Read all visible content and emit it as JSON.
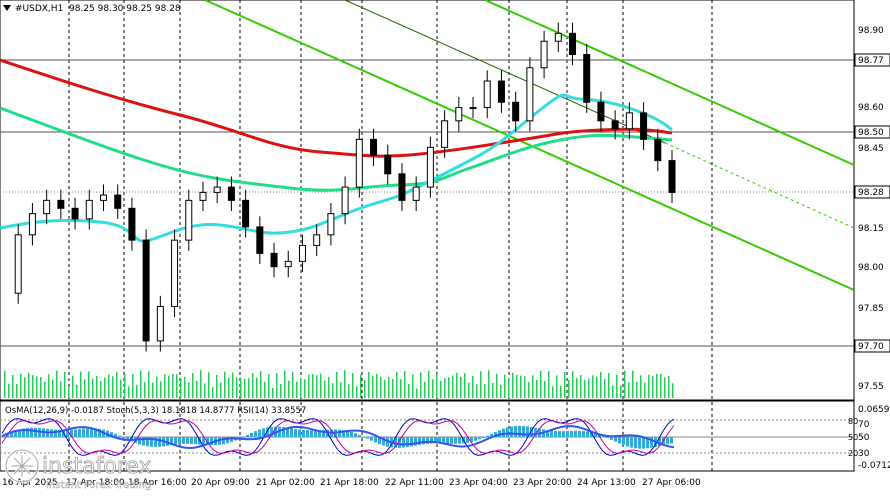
{
  "chart_title": {
    "symbol": "#USDX,H1",
    "ohlc": "98.25 98.30 98.25 98.28",
    "dropdown_icon": "triangle-down"
  },
  "price_axis": {
    "ticks": [
      "98.90",
      "98.60",
      "98.45",
      "98.15",
      "98.00",
      "97.85",
      "97.55"
    ],
    "highlighted": [
      {
        "label": "98.77",
        "kind": "level"
      },
      {
        "label": "98.50",
        "kind": "level"
      },
      {
        "label": "98.28",
        "kind": "current"
      },
      {
        "label": "97.70",
        "kind": "level"
      }
    ]
  },
  "time_axis": {
    "labels": [
      "16 Apr 2025",
      "17 Apr 18:00",
      "18 Apr 16:00",
      "20 Apr 09:00",
      "21 Apr 02:00",
      "21 Apr 18:00",
      "22 Apr 11:00",
      "23 Apr 04:00",
      "23 Apr 20:00",
      "24 Apr 13:00",
      "27 Apr 06:00"
    ]
  },
  "indicator": {
    "header": "OsMA(12,26,9) -0.0187  Stoch(5,3,3) 18.1818 14.8777  RSI(14) 33.8557",
    "scale": [
      "0.0659",
      "70",
      "50",
      "30",
      "-0.0712"
    ],
    "level_labels": [
      "80",
      "50",
      "20"
    ]
  },
  "watermark": {
    "brand": "instaforex",
    "tagline": "Instant Forex Trading"
  },
  "colors": {
    "candles": "#000000",
    "ema_red": "#dd1111",
    "ema_green": "#22dd88",
    "ema_cyan": "#33dddd",
    "channel": "#33cc00",
    "osma": "#33aadd",
    "stoch_main": "#0000cc",
    "stoch_signal": "#cc0099",
    "rsi": "#3355ee"
  },
  "chart_data": {
    "type": "line",
    "title": "#USDX,H1",
    "ylim": [
      97.5,
      98.95
    ],
    "y_ticks": [
      98.9,
      98.6,
      98.45,
      98.15,
      98.0,
      97.85,
      97.55
    ],
    "x_labels": [
      "16 Apr 2025",
      "17 Apr 18:00",
      "18 Apr 16:00",
      "20 Apr 09:00",
      "21 Apr 02:00",
      "21 Apr 18:00",
      "22 Apr 11:00",
      "23 Apr 04:00",
      "23 Apr 20:00",
      "24 Apr 13:00",
      "27 Apr 06:00"
    ],
    "series": [
      {
        "name": "close",
        "values": [
          97.9,
          98.12,
          98.2,
          98.25,
          98.22,
          98.18,
          98.25,
          98.27,
          98.22,
          98.1,
          97.72,
          97.85,
          98.1,
          98.25,
          98.28,
          98.3,
          98.25,
          98.15,
          98.05,
          98.0,
          98.02,
          98.08,
          98.12,
          98.2,
          98.3,
          98.48,
          98.42,
          98.35,
          98.25,
          98.3,
          98.45,
          98.55,
          98.6,
          98.6,
          98.7,
          98.62,
          98.55,
          98.75,
          98.85,
          98.88,
          98.8,
          98.62,
          98.55,
          98.52,
          98.58,
          98.48,
          98.4,
          98.28
        ]
      },
      {
        "name": "EMA red",
        "values": [
          98.77,
          98.72,
          98.67,
          98.63,
          98.58,
          98.55,
          98.51,
          98.48,
          98.45,
          98.42,
          98.41,
          98.41,
          98.41,
          98.42,
          98.43,
          98.45,
          98.48,
          98.5,
          98.5,
          98.5,
          98.5,
          98.49
        ]
      },
      {
        "name": "EMA green",
        "values": [
          98.6,
          98.55,
          98.52,
          98.48,
          98.44,
          98.4,
          98.36,
          98.32,
          98.3,
          98.3,
          98.3,
          98.32,
          98.36,
          98.4,
          98.43,
          98.46,
          98.48,
          98.49,
          98.49,
          98.48
        ]
      },
      {
        "name": "EMA cyan",
        "values": [
          98.15,
          98.17,
          98.16,
          98.1,
          98.2,
          98.15,
          98.1,
          98.1,
          98.12,
          98.2,
          98.25,
          98.28,
          98.35,
          98.45,
          98.55,
          98.58,
          98.6,
          98.57,
          98.52
        ]
      }
    ]
  }
}
